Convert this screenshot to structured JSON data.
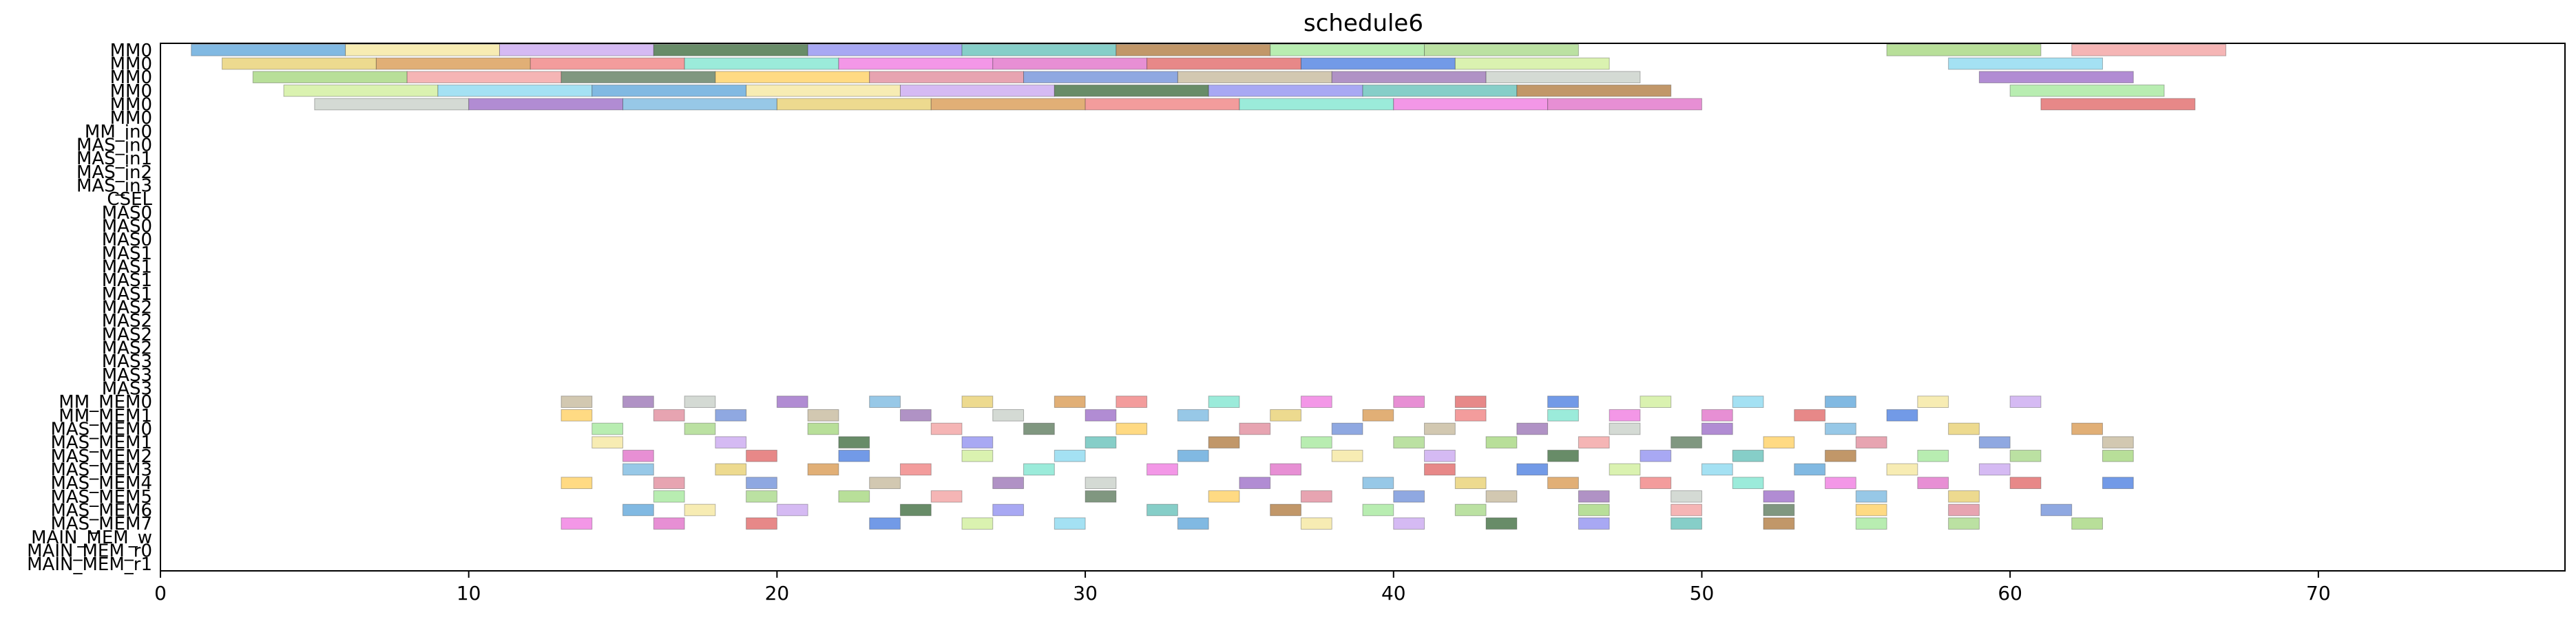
{
  "chart_data": {
    "type": "gantt",
    "title": "schedule6",
    "xlabel": "",
    "ylabel": "",
    "xlim": [
      0,
      78
    ],
    "x_ticks": [
      0,
      10,
      20,
      30,
      40,
      50,
      60,
      70
    ],
    "grid": false,
    "rows": [
      "MM0",
      "MM0",
      "MM0",
      "MM0",
      "MM0",
      "MM0",
      "MM_in0",
      "MAS_in0",
      "MAS_in1",
      "MAS_in2",
      "MAS_in3",
      "CSEL",
      "MAS0",
      "MAS0",
      "MAS0",
      "MAS1",
      "MAS1",
      "MAS1",
      "MAS1",
      "MAS2",
      "MAS2",
      "MAS2",
      "MAS2",
      "MAS3",
      "MAS3",
      "MAS3",
      "MM_MEM0",
      "MM_MEM1",
      "MAS_MEM0",
      "MAS_MEM1",
      "MAS_MEM2",
      "MAS_MEM3",
      "MAS_MEM4",
      "MAS_MEM5",
      "MAS_MEM6",
      "MAS_MEM7",
      "MAIN_MEM_w",
      "MAIN_MEM_r0",
      "MAIN_MEM_r1"
    ],
    "palette": [
      "#5da5da",
      "#e08a9b",
      "#e06666",
      "#a4d67c",
      "#f08080",
      "#64c0b8",
      "#9b6cc7",
      "#f5e79e",
      "#6f8fd8",
      "#4a7de0",
      "#f2a0a0",
      "#7fe5d0",
      "#b07a3f",
      "#7ab8e0",
      "#c9a7f0",
      "#c5b99b",
      "#d0ee9a",
      "#5c7a5c",
      "#f07ae0",
      "#a4e89b",
      "#e8d070",
      "#3d6b3d",
      "#9a73b5",
      "#8ad8f0",
      "#ffd060",
      "#e070c8",
      "#a8d888",
      "#d89850",
      "#8f8ff0",
      "#c8d0c8"
    ],
    "bars": [
      {
        "row": 0,
        "start": 1,
        "end": 6
      },
      {
        "row": 0,
        "start": 6,
        "end": 11
      },
      {
        "row": 0,
        "start": 11,
        "end": 16
      },
      {
        "row": 0,
        "start": 16,
        "end": 21
      },
      {
        "row": 0,
        "start": 21,
        "end": 26
      },
      {
        "row": 0,
        "start": 26,
        "end": 31
      },
      {
        "row": 0,
        "start": 31,
        "end": 36
      },
      {
        "row": 0,
        "start": 36,
        "end": 41
      },
      {
        "row": 0,
        "start": 41,
        "end": 46
      },
      {
        "row": 0,
        "start": 56,
        "end": 61
      },
      {
        "row": 0,
        "start": 62,
        "end": 67
      },
      {
        "row": 1,
        "start": 2,
        "end": 7
      },
      {
        "row": 1,
        "start": 7,
        "end": 12
      },
      {
        "row": 1,
        "start": 12,
        "end": 17
      },
      {
        "row": 1,
        "start": 17,
        "end": 22
      },
      {
        "row": 1,
        "start": 22,
        "end": 27
      },
      {
        "row": 1,
        "start": 27,
        "end": 32
      },
      {
        "row": 1,
        "start": 32,
        "end": 37
      },
      {
        "row": 1,
        "start": 37,
        "end": 42
      },
      {
        "row": 1,
        "start": 42,
        "end": 47
      },
      {
        "row": 1,
        "start": 58,
        "end": 63
      },
      {
        "row": 2,
        "start": 3,
        "end": 8
      },
      {
        "row": 2,
        "start": 8,
        "end": 13
      },
      {
        "row": 2,
        "start": 13,
        "end": 18
      },
      {
        "row": 2,
        "start": 18,
        "end": 23
      },
      {
        "row": 2,
        "start": 23,
        "end": 28
      },
      {
        "row": 2,
        "start": 28,
        "end": 33
      },
      {
        "row": 2,
        "start": 33,
        "end": 38
      },
      {
        "row": 2,
        "start": 38,
        "end": 43
      },
      {
        "row": 2,
        "start": 43,
        "end": 48
      },
      {
        "row": 2,
        "start": 59,
        "end": 64
      },
      {
        "row": 3,
        "start": 4,
        "end": 9
      },
      {
        "row": 3,
        "start": 9,
        "end": 14
      },
      {
        "row": 3,
        "start": 14,
        "end": 19
      },
      {
        "row": 3,
        "start": 19,
        "end": 24
      },
      {
        "row": 3,
        "start": 24,
        "end": 29
      },
      {
        "row": 3,
        "start": 29,
        "end": 34
      },
      {
        "row": 3,
        "start": 34,
        "end": 39
      },
      {
        "row": 3,
        "start": 39,
        "end": 44
      },
      {
        "row": 3,
        "start": 44,
        "end": 49
      },
      {
        "row": 3,
        "start": 60,
        "end": 65
      },
      {
        "row": 4,
        "start": 5,
        "end": 10
      },
      {
        "row": 4,
        "start": 10,
        "end": 15
      },
      {
        "row": 4,
        "start": 15,
        "end": 20
      },
      {
        "row": 4,
        "start": 20,
        "end": 25
      },
      {
        "row": 4,
        "start": 25,
        "end": 30
      },
      {
        "row": 4,
        "start": 30,
        "end": 35
      },
      {
        "row": 4,
        "start": 35,
        "end": 40
      },
      {
        "row": 4,
        "start": 40,
        "end": 45
      },
      {
        "row": 4,
        "start": 45,
        "end": 50
      },
      {
        "row": 4,
        "start": 61,
        "end": 66
      },
      {
        "row": 26,
        "start": 13,
        "end": 14
      },
      {
        "row": 26,
        "start": 15,
        "end": 16
      },
      {
        "row": 26,
        "start": 17,
        "end": 18
      },
      {
        "row": 26,
        "start": 20,
        "end": 21
      },
      {
        "row": 26,
        "start": 23,
        "end": 24
      },
      {
        "row": 26,
        "start": 26,
        "end": 27
      },
      {
        "row": 26,
        "start": 29,
        "end": 30
      },
      {
        "row": 26,
        "start": 31,
        "end": 32
      },
      {
        "row": 26,
        "start": 34,
        "end": 35
      },
      {
        "row": 26,
        "start": 37,
        "end": 38
      },
      {
        "row": 26,
        "start": 40,
        "end": 41
      },
      {
        "row": 26,
        "start": 42,
        "end": 43
      },
      {
        "row": 26,
        "start": 45,
        "end": 46
      },
      {
        "row": 26,
        "start": 48,
        "end": 49
      },
      {
        "row": 26,
        "start": 51,
        "end": 52
      },
      {
        "row": 26,
        "start": 54,
        "end": 55
      },
      {
        "row": 26,
        "start": 57,
        "end": 58
      },
      {
        "row": 26,
        "start": 60,
        "end": 61
      },
      {
        "row": 27,
        "start": 13,
        "end": 14
      },
      {
        "row": 27,
        "start": 16,
        "end": 17
      },
      {
        "row": 27,
        "start": 18,
        "end": 19
      },
      {
        "row": 27,
        "start": 21,
        "end": 22
      },
      {
        "row": 27,
        "start": 24,
        "end": 25
      },
      {
        "row": 27,
        "start": 27,
        "end": 28
      },
      {
        "row": 27,
        "start": 30,
        "end": 31
      },
      {
        "row": 27,
        "start": 33,
        "end": 34
      },
      {
        "row": 27,
        "start": 36,
        "end": 37
      },
      {
        "row": 27,
        "start": 39,
        "end": 40
      },
      {
        "row": 27,
        "start": 42,
        "end": 43
      },
      {
        "row": 27,
        "start": 45,
        "end": 46
      },
      {
        "row": 27,
        "start": 47,
        "end": 48
      },
      {
        "row": 27,
        "start": 50,
        "end": 51
      },
      {
        "row": 27,
        "start": 53,
        "end": 54
      },
      {
        "row": 27,
        "start": 56,
        "end": 57
      },
      {
        "row": 28,
        "start": 14,
        "end": 15
      },
      {
        "row": 28,
        "start": 17,
        "end": 18
      },
      {
        "row": 28,
        "start": 21,
        "end": 22
      },
      {
        "row": 28,
        "start": 25,
        "end": 26
      },
      {
        "row": 28,
        "start": 28,
        "end": 29
      },
      {
        "row": 28,
        "start": 31,
        "end": 32
      },
      {
        "row": 28,
        "start": 35,
        "end": 36
      },
      {
        "row": 28,
        "start": 38,
        "end": 39
      },
      {
        "row": 28,
        "start": 41,
        "end": 42
      },
      {
        "row": 28,
        "start": 44,
        "end": 45
      },
      {
        "row": 28,
        "start": 47,
        "end": 48
      },
      {
        "row": 28,
        "start": 50,
        "end": 51
      },
      {
        "row": 28,
        "start": 54,
        "end": 55
      },
      {
        "row": 28,
        "start": 58,
        "end": 59
      },
      {
        "row": 28,
        "start": 62,
        "end": 63
      },
      {
        "row": 29,
        "start": 14,
        "end": 15
      },
      {
        "row": 29,
        "start": 18,
        "end": 19
      },
      {
        "row": 29,
        "start": 22,
        "end": 23
      },
      {
        "row": 29,
        "start": 26,
        "end": 27
      },
      {
        "row": 29,
        "start": 30,
        "end": 31
      },
      {
        "row": 29,
        "start": 34,
        "end": 35
      },
      {
        "row": 29,
        "start": 37,
        "end": 38
      },
      {
        "row": 29,
        "start": 40,
        "end": 41
      },
      {
        "row": 29,
        "start": 43,
        "end": 44
      },
      {
        "row": 29,
        "start": 46,
        "end": 47
      },
      {
        "row": 29,
        "start": 49,
        "end": 50
      },
      {
        "row": 29,
        "start": 52,
        "end": 53
      },
      {
        "row": 29,
        "start": 55,
        "end": 56
      },
      {
        "row": 29,
        "start": 59,
        "end": 60
      },
      {
        "row": 29,
        "start": 63,
        "end": 64
      },
      {
        "row": 30,
        "start": 15,
        "end": 16
      },
      {
        "row": 30,
        "start": 19,
        "end": 20
      },
      {
        "row": 30,
        "start": 22,
        "end": 23
      },
      {
        "row": 30,
        "start": 26,
        "end": 27
      },
      {
        "row": 30,
        "start": 29,
        "end": 30
      },
      {
        "row": 30,
        "start": 33,
        "end": 34
      },
      {
        "row": 30,
        "start": 38,
        "end": 39
      },
      {
        "row": 30,
        "start": 41,
        "end": 42
      },
      {
        "row": 30,
        "start": 45,
        "end": 46
      },
      {
        "row": 30,
        "start": 48,
        "end": 49
      },
      {
        "row": 30,
        "start": 51,
        "end": 52
      },
      {
        "row": 30,
        "start": 54,
        "end": 55
      },
      {
        "row": 30,
        "start": 57,
        "end": 58
      },
      {
        "row": 30,
        "start": 60,
        "end": 61
      },
      {
        "row": 30,
        "start": 63,
        "end": 64
      },
      {
        "row": 31,
        "start": 15,
        "end": 16
      },
      {
        "row": 31,
        "start": 18,
        "end": 19
      },
      {
        "row": 31,
        "start": 21,
        "end": 22
      },
      {
        "row": 31,
        "start": 24,
        "end": 25
      },
      {
        "row": 31,
        "start": 28,
        "end": 29
      },
      {
        "row": 31,
        "start": 32,
        "end": 33
      },
      {
        "row": 31,
        "start": 36,
        "end": 37
      },
      {
        "row": 31,
        "start": 41,
        "end": 42
      },
      {
        "row": 31,
        "start": 44,
        "end": 45
      },
      {
        "row": 31,
        "start": 47,
        "end": 48
      },
      {
        "row": 31,
        "start": 50,
        "end": 51
      },
      {
        "row": 31,
        "start": 53,
        "end": 54
      },
      {
        "row": 31,
        "start": 56,
        "end": 57
      },
      {
        "row": 31,
        "start": 59,
        "end": 60
      },
      {
        "row": 32,
        "start": 13,
        "end": 14
      },
      {
        "row": 32,
        "start": 16,
        "end": 17
      },
      {
        "row": 32,
        "start": 19,
        "end": 20
      },
      {
        "row": 32,
        "start": 23,
        "end": 24
      },
      {
        "row": 32,
        "start": 27,
        "end": 28
      },
      {
        "row": 32,
        "start": 30,
        "end": 31
      },
      {
        "row": 32,
        "start": 35,
        "end": 36
      },
      {
        "row": 32,
        "start": 39,
        "end": 40
      },
      {
        "row": 32,
        "start": 42,
        "end": 43
      },
      {
        "row": 32,
        "start": 45,
        "end": 46
      },
      {
        "row": 32,
        "start": 48,
        "end": 49
      },
      {
        "row": 32,
        "start": 51,
        "end": 52
      },
      {
        "row": 32,
        "start": 54,
        "end": 55
      },
      {
        "row": 32,
        "start": 57,
        "end": 58
      },
      {
        "row": 32,
        "start": 60,
        "end": 61
      },
      {
        "row": 32,
        "start": 63,
        "end": 64
      },
      {
        "row": 33,
        "start": 16,
        "end": 17
      },
      {
        "row": 33,
        "start": 19,
        "end": 20
      },
      {
        "row": 33,
        "start": 22,
        "end": 23
      },
      {
        "row": 33,
        "start": 25,
        "end": 26
      },
      {
        "row": 33,
        "start": 30,
        "end": 31
      },
      {
        "row": 33,
        "start": 34,
        "end": 35
      },
      {
        "row": 33,
        "start": 37,
        "end": 38
      },
      {
        "row": 33,
        "start": 40,
        "end": 41
      },
      {
        "row": 33,
        "start": 43,
        "end": 44
      },
      {
        "row": 33,
        "start": 46,
        "end": 47
      },
      {
        "row": 33,
        "start": 49,
        "end": 50
      },
      {
        "row": 33,
        "start": 52,
        "end": 53
      },
      {
        "row": 33,
        "start": 55,
        "end": 56
      },
      {
        "row": 33,
        "start": 58,
        "end": 59
      },
      {
        "row": 34,
        "start": 15,
        "end": 16
      },
      {
        "row": 34,
        "start": 17,
        "end": 18
      },
      {
        "row": 34,
        "start": 20,
        "end": 21
      },
      {
        "row": 34,
        "start": 24,
        "end": 25
      },
      {
        "row": 34,
        "start": 27,
        "end": 28
      },
      {
        "row": 34,
        "start": 32,
        "end": 33
      },
      {
        "row": 34,
        "start": 36,
        "end": 37
      },
      {
        "row": 34,
        "start": 39,
        "end": 40
      },
      {
        "row": 34,
        "start": 42,
        "end": 43
      },
      {
        "row": 34,
        "start": 46,
        "end": 47
      },
      {
        "row": 34,
        "start": 49,
        "end": 50
      },
      {
        "row": 34,
        "start": 52,
        "end": 53
      },
      {
        "row": 34,
        "start": 55,
        "end": 56
      },
      {
        "row": 34,
        "start": 58,
        "end": 59
      },
      {
        "row": 34,
        "start": 61,
        "end": 62
      },
      {
        "row": 35,
        "start": 13,
        "end": 14
      },
      {
        "row": 35,
        "start": 16,
        "end": 17
      },
      {
        "row": 35,
        "start": 19,
        "end": 20
      },
      {
        "row": 35,
        "start": 23,
        "end": 24
      },
      {
        "row": 35,
        "start": 26,
        "end": 27
      },
      {
        "row": 35,
        "start": 29,
        "end": 30
      },
      {
        "row": 35,
        "start": 33,
        "end": 34
      },
      {
        "row": 35,
        "start": 37,
        "end": 38
      },
      {
        "row": 35,
        "start": 40,
        "end": 41
      },
      {
        "row": 35,
        "start": 43,
        "end": 44
      },
      {
        "row": 35,
        "start": 46,
        "end": 47
      },
      {
        "row": 35,
        "start": 49,
        "end": 50
      },
      {
        "row": 35,
        "start": 52,
        "end": 53
      },
      {
        "row": 35,
        "start": 55,
        "end": 56
      },
      {
        "row": 35,
        "start": 58,
        "end": 59
      },
      {
        "row": 35,
        "start": 62,
        "end": 63
      }
    ]
  }
}
